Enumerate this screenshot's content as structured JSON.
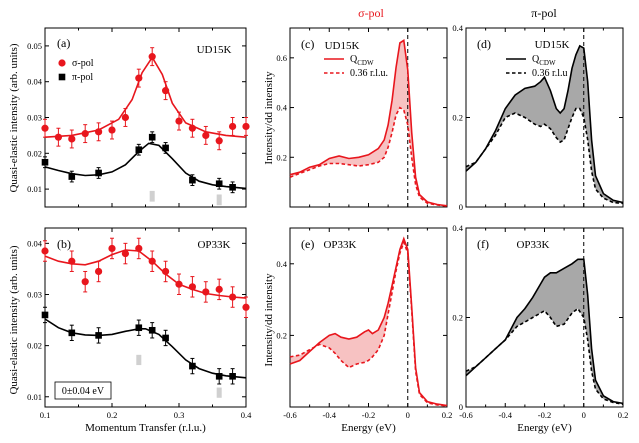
{
  "colors": {
    "red": "#e8161d",
    "black": "#000000",
    "shade_red": "#f7c2c2",
    "shade_grey": "#a8a8a8",
    "bar": "#d0d0d0"
  },
  "chart_data": [
    {
      "id": "a",
      "type": "scatter",
      "panel_label": "(a)",
      "title": "UD15K",
      "xlim": [
        0.1,
        0.4
      ],
      "ylim": [
        0.005,
        0.055
      ],
      "xticks": [
        0.1,
        0.2,
        0.3,
        0.4
      ],
      "yticks": [
        0.01,
        0.02,
        0.03,
        0.04,
        0.05
      ],
      "xtick_labels": [
        "",
        "",
        "",
        ""
      ],
      "ytick_labels": [
        "0.01",
        "0.02",
        "0.03",
        "0.04",
        "0.05"
      ],
      "legend": [
        {
          "label": "σ-pol",
          "marker": "circle",
          "color": "#e8161d"
        },
        {
          "label": "π-pol",
          "marker": "square",
          "color": "#000000"
        }
      ],
      "series": [
        {
          "name": "σ-pol",
          "marker": "circle",
          "color": "#e8161d",
          "x": [
            0.1,
            0.12,
            0.14,
            0.16,
            0.18,
            0.2,
            0.22,
            0.24,
            0.26,
            0.28,
            0.3,
            0.32,
            0.34,
            0.36,
            0.38,
            0.4
          ],
          "y": [
            0.027,
            0.0245,
            0.024,
            0.0255,
            0.026,
            0.0265,
            0.03,
            0.041,
            0.047,
            0.0375,
            0.029,
            0.027,
            0.025,
            0.0235,
            0.0275,
            0.0275
          ],
          "err": [
            0.0025,
            0.0025,
            0.0025,
            0.0025,
            0.0025,
            0.0025,
            0.0025,
            0.0025,
            0.0025,
            0.0025,
            0.0025,
            0.0025,
            0.0025,
            0.0025,
            0.0025,
            0.0025
          ],
          "fit_x": [
            0.1,
            0.14,
            0.18,
            0.21,
            0.23,
            0.245,
            0.26,
            0.275,
            0.29,
            0.31,
            0.34,
            0.37,
            0.4
          ],
          "fit_y": [
            0.0245,
            0.025,
            0.0265,
            0.0295,
            0.035,
            0.0425,
            0.0468,
            0.042,
            0.034,
            0.0285,
            0.026,
            0.025,
            0.0245
          ]
        },
        {
          "name": "π-pol",
          "marker": "square",
          "color": "#000000",
          "x": [
            0.1,
            0.14,
            0.18,
            0.24,
            0.26,
            0.28,
            0.32,
            0.36,
            0.38
          ],
          "y": [
            0.0175,
            0.0135,
            0.0145,
            0.021,
            0.0245,
            0.0215,
            0.0125,
            0.0115,
            0.0105
          ],
          "err": [
            0.0015,
            0.0015,
            0.0015,
            0.0015,
            0.0015,
            0.0015,
            0.0015,
            0.0015,
            0.0015
          ],
          "fit_x": [
            0.1,
            0.12,
            0.14,
            0.16,
            0.18,
            0.2,
            0.22,
            0.24,
            0.255,
            0.27,
            0.29,
            0.31,
            0.33,
            0.35,
            0.37,
            0.4
          ],
          "fit_y": [
            0.0162,
            0.0152,
            0.0143,
            0.0138,
            0.014,
            0.0148,
            0.0168,
            0.0205,
            0.0228,
            0.0222,
            0.0185,
            0.0145,
            0.0122,
            0.0112,
            0.0107,
            0.0102
          ]
        }
      ],
      "bars": [
        {
          "x": 0.26,
          "y0": 0.0065,
          "y1": 0.0095
        },
        {
          "x": 0.36,
          "y0": 0.0055,
          "y1": 0.0085
        }
      ]
    },
    {
      "id": "b",
      "type": "scatter",
      "panel_label": "(b)",
      "title": "OP33K",
      "xlim": [
        0.1,
        0.4
      ],
      "ylim": [
        0.008,
        0.043
      ],
      "xticks": [
        0.1,
        0.2,
        0.3,
        0.4
      ],
      "yticks": [
        0.01,
        0.02,
        0.03,
        0.04
      ],
      "xtick_labels": [
        "0.1",
        "0.2",
        "0.3",
        "0.4"
      ],
      "ytick_labels": [
        "0.01",
        "0.02",
        "0.03",
        "0.04"
      ],
      "xlabel": "Momentum Transfer (r.l.u.)",
      "annotation": "0±0.04 eV",
      "series": [
        {
          "name": "σ-pol",
          "marker": "circle",
          "color": "#e8161d",
          "x": [
            0.1,
            0.14,
            0.16,
            0.18,
            0.2,
            0.22,
            0.24,
            0.26,
            0.28,
            0.3,
            0.32,
            0.34,
            0.36,
            0.38,
            0.4
          ],
          "y": [
            0.0385,
            0.0365,
            0.0325,
            0.0345,
            0.039,
            0.038,
            0.039,
            0.0365,
            0.0345,
            0.032,
            0.0315,
            0.0305,
            0.031,
            0.0295,
            0.0275
          ],
          "err": [
            0.002,
            0.002,
            0.002,
            0.002,
            0.002,
            0.002,
            0.002,
            0.002,
            0.002,
            0.002,
            0.002,
            0.002,
            0.002,
            0.002,
            0.002
          ],
          "fit_x": [
            0.1,
            0.12,
            0.14,
            0.16,
            0.18,
            0.2,
            0.22,
            0.24,
            0.26,
            0.28,
            0.3,
            0.32,
            0.34,
            0.36,
            0.38,
            0.4
          ],
          "fit_y": [
            0.0375,
            0.0365,
            0.036,
            0.0358,
            0.0365,
            0.0378,
            0.0387,
            0.0385,
            0.0365,
            0.034,
            0.032,
            0.031,
            0.0302,
            0.0298,
            0.0295,
            0.0293
          ]
        },
        {
          "name": "π-pol",
          "marker": "square",
          "color": "#000000",
          "x": [
            0.1,
            0.14,
            0.18,
            0.24,
            0.26,
            0.28,
            0.32,
            0.36,
            0.38
          ],
          "y": [
            0.026,
            0.0225,
            0.022,
            0.0235,
            0.023,
            0.0215,
            0.016,
            0.014,
            0.014
          ],
          "err": [
            0.0015,
            0.0015,
            0.0015,
            0.0015,
            0.0015,
            0.0015,
            0.0015,
            0.0015,
            0.0015
          ],
          "fit_x": [
            0.1,
            0.12,
            0.14,
            0.16,
            0.18,
            0.2,
            0.22,
            0.24,
            0.25,
            0.27,
            0.29,
            0.31,
            0.33,
            0.35,
            0.37,
            0.4
          ],
          "fit_y": [
            0.0252,
            0.0235,
            0.0225,
            0.0221,
            0.022,
            0.0222,
            0.0228,
            0.0233,
            0.0233,
            0.0222,
            0.0198,
            0.0172,
            0.0155,
            0.0146,
            0.0141,
            0.0137
          ]
        }
      ],
      "bars": [
        {
          "x": 0.24,
          "y0": 0.0162,
          "y1": 0.0182
        },
        {
          "x": 0.36,
          "y0": 0.0098,
          "y1": 0.0118
        }
      ]
    },
    {
      "id": "c",
      "type": "line",
      "panel_label": "(c)",
      "title": "UD15K",
      "color": "#e8161d",
      "xlim": [
        -0.6,
        0.2
      ],
      "ylim": [
        0.0,
        0.72
      ],
      "xticks": [
        -0.6,
        -0.4,
        -0.2,
        0.0,
        0.2
      ],
      "yticks": [
        0.2,
        0.4,
        0.6
      ],
      "xtick_labels": [
        "",
        "",
        "",
        "",
        ""
      ],
      "ytick_labels": [
        "0.2",
        "0.4",
        "0.6"
      ],
      "legend": [
        {
          "label": "Q",
          "sub": "CDW",
          "style": "solid"
        },
        {
          "label": "0.36 r.l.u.",
          "style": "dashed"
        }
      ],
      "vline_x": 0.0,
      "series": [
        {
          "name": "QCDW",
          "style": "solid",
          "x": [
            -0.6,
            -0.55,
            -0.5,
            -0.45,
            -0.4,
            -0.35,
            -0.3,
            -0.25,
            -0.2,
            -0.15,
            -0.12,
            -0.1,
            -0.08,
            -0.06,
            -0.04,
            -0.02,
            0.0,
            0.02,
            0.04,
            0.06,
            0.1,
            0.15,
            0.2
          ],
          "y": [
            0.13,
            0.14,
            0.16,
            0.17,
            0.195,
            0.205,
            0.195,
            0.2,
            0.21,
            0.235,
            0.27,
            0.33,
            0.43,
            0.56,
            0.66,
            0.67,
            0.55,
            0.3,
            0.12,
            0.05,
            0.02,
            0.01,
            0.005
          ]
        },
        {
          "name": "0.36 r.l.u.",
          "style": "dashed",
          "x": [
            -0.6,
            -0.55,
            -0.5,
            -0.45,
            -0.4,
            -0.35,
            -0.3,
            -0.25,
            -0.2,
            -0.15,
            -0.12,
            -0.1,
            -0.08,
            -0.06,
            -0.04,
            -0.02,
            0.0,
            0.02,
            0.04,
            0.06,
            0.1,
            0.15,
            0.2
          ],
          "y": [
            0.12,
            0.135,
            0.15,
            0.165,
            0.175,
            0.175,
            0.17,
            0.165,
            0.17,
            0.18,
            0.2,
            0.24,
            0.3,
            0.37,
            0.4,
            0.39,
            0.33,
            0.2,
            0.09,
            0.04,
            0.015,
            0.008,
            0.004
          ]
        }
      ]
    },
    {
      "id": "d",
      "type": "line",
      "panel_label": "(d)",
      "title": "UD15K",
      "color": "#000000",
      "xlim": [
        -0.6,
        0.2
      ],
      "ylim": [
        0.0,
        0.4
      ],
      "xticks": [
        -0.6,
        -0.4,
        -0.2,
        0.0,
        0.2
      ],
      "yticks": [
        0,
        0.2,
        0.4
      ],
      "xtick_labels": [
        "",
        "",
        "",
        "",
        ""
      ],
      "ytick_labels": [
        "0",
        "0.2",
        "0.4"
      ],
      "legend": [
        {
          "label": "Q",
          "sub": "CDW",
          "style": "solid"
        },
        {
          "label": "0.36 r.l.u",
          "style": "dashed"
        }
      ],
      "vline_x": 0.0,
      "series": [
        {
          "name": "QCDW",
          "style": "solid",
          "x": [
            -0.6,
            -0.55,
            -0.5,
            -0.45,
            -0.4,
            -0.35,
            -0.3,
            -0.25,
            -0.22,
            -0.2,
            -0.17,
            -0.14,
            -0.12,
            -0.1,
            -0.08,
            -0.06,
            -0.04,
            -0.02,
            0.0,
            0.02,
            0.04,
            0.06,
            0.1,
            0.15,
            0.2
          ],
          "y": [
            0.08,
            0.1,
            0.13,
            0.17,
            0.22,
            0.25,
            0.265,
            0.27,
            0.28,
            0.29,
            0.26,
            0.22,
            0.21,
            0.22,
            0.26,
            0.31,
            0.34,
            0.36,
            0.355,
            0.28,
            0.15,
            0.07,
            0.03,
            0.015,
            0.01
          ]
        },
        {
          "name": "0.36 r.l.u",
          "style": "dashed",
          "x": [
            -0.6,
            -0.55,
            -0.5,
            -0.45,
            -0.4,
            -0.35,
            -0.3,
            -0.25,
            -0.22,
            -0.2,
            -0.17,
            -0.14,
            -0.12,
            -0.1,
            -0.08,
            -0.06,
            -0.04,
            -0.02,
            0.0,
            0.02,
            0.04,
            0.06,
            0.1,
            0.15,
            0.2
          ],
          "y": [
            0.09,
            0.1,
            0.13,
            0.16,
            0.2,
            0.21,
            0.2,
            0.185,
            0.18,
            0.185,
            0.175,
            0.155,
            0.145,
            0.15,
            0.175,
            0.2,
            0.22,
            0.22,
            0.2,
            0.15,
            0.08,
            0.04,
            0.02,
            0.01,
            0.008
          ]
        }
      ]
    },
    {
      "id": "e",
      "type": "line",
      "panel_label": "(e)",
      "title": "OP33K",
      "color": "#e8161d",
      "xlim": [
        -0.6,
        0.2
      ],
      "ylim": [
        0.0,
        0.5
      ],
      "xticks": [
        -0.6,
        -0.4,
        -0.2,
        0.0,
        0.2
      ],
      "yticks": [
        0.2,
        0.4
      ],
      "xtick_labels": [
        "-0.6",
        "-0.4",
        "-0.2",
        "0",
        "0.2"
      ],
      "ytick_labels": [
        "0.2",
        "0.4"
      ],
      "xlabel": "Energy (eV)",
      "vline_x": 0.0,
      "series": [
        {
          "name": "QCDW",
          "style": "solid",
          "x": [
            -0.6,
            -0.55,
            -0.5,
            -0.45,
            -0.4,
            -0.37,
            -0.34,
            -0.3,
            -0.26,
            -0.22,
            -0.2,
            -0.18,
            -0.15,
            -0.12,
            -0.1,
            -0.08,
            -0.06,
            -0.04,
            -0.02,
            0.0,
            0.02,
            0.04,
            0.06,
            0.1,
            0.15,
            0.2
          ],
          "y": [
            0.12,
            0.13,
            0.155,
            0.18,
            0.2,
            0.205,
            0.195,
            0.19,
            0.195,
            0.21,
            0.215,
            0.205,
            0.215,
            0.25,
            0.29,
            0.34,
            0.39,
            0.44,
            0.47,
            0.44,
            0.28,
            0.11,
            0.04,
            0.015,
            0.008,
            0.004
          ]
        },
        {
          "name": "0.36 r.l.u.",
          "style": "dashed",
          "x": [
            -0.6,
            -0.55,
            -0.5,
            -0.45,
            -0.4,
            -0.37,
            -0.34,
            -0.3,
            -0.26,
            -0.22,
            -0.2,
            -0.18,
            -0.15,
            -0.12,
            -0.1,
            -0.08,
            -0.06,
            -0.04,
            -0.02,
            0.0,
            0.02,
            0.04,
            0.06,
            0.1,
            0.15,
            0.2
          ],
          "y": [
            0.14,
            0.145,
            0.16,
            0.175,
            0.165,
            0.15,
            0.13,
            0.11,
            0.12,
            0.125,
            0.13,
            0.14,
            0.16,
            0.2,
            0.26,
            0.32,
            0.38,
            0.43,
            0.46,
            0.43,
            0.27,
            0.1,
            0.035,
            0.012,
            0.006,
            0.003
          ]
        }
      ]
    },
    {
      "id": "f",
      "type": "line",
      "panel_label": "(f)",
      "title": "OP33K",
      "color": "#000000",
      "xlim": [
        -0.6,
        0.2
      ],
      "ylim": [
        0.0,
        0.4
      ],
      "xticks": [
        -0.6,
        -0.4,
        -0.2,
        0.0,
        0.2
      ],
      "yticks": [
        0,
        0.2,
        0.4
      ],
      "xtick_labels": [
        "-0.6",
        "-0.4",
        "-0.2",
        "0",
        "0.2"
      ],
      "ytick_labels": [
        "0",
        "0.2",
        "0.4"
      ],
      "xlabel": "Energy (eV)",
      "vline_x": 0.0,
      "series": [
        {
          "name": "QCDW",
          "style": "solid",
          "x": [
            -0.6,
            -0.55,
            -0.5,
            -0.45,
            -0.4,
            -0.37,
            -0.34,
            -0.3,
            -0.26,
            -0.22,
            -0.2,
            -0.17,
            -0.14,
            -0.1,
            -0.06,
            -0.03,
            0.0,
            0.02,
            0.04,
            0.06,
            0.1,
            0.15,
            0.2
          ],
          "y": [
            0.07,
            0.09,
            0.11,
            0.13,
            0.15,
            0.175,
            0.2,
            0.22,
            0.245,
            0.275,
            0.29,
            0.3,
            0.3,
            0.31,
            0.32,
            0.33,
            0.33,
            0.25,
            0.13,
            0.06,
            0.025,
            0.012,
            0.008
          ]
        },
        {
          "name": "0.36 r.l.u.",
          "style": "dashed",
          "x": [
            -0.6,
            -0.55,
            -0.5,
            -0.45,
            -0.4,
            -0.37,
            -0.34,
            -0.3,
            -0.26,
            -0.22,
            -0.2,
            -0.17,
            -0.14,
            -0.1,
            -0.06,
            -0.03,
            0.0,
            0.02,
            0.04,
            0.06,
            0.1,
            0.15,
            0.2
          ],
          "y": [
            0.08,
            0.09,
            0.11,
            0.13,
            0.15,
            0.165,
            0.18,
            0.19,
            0.2,
            0.21,
            0.215,
            0.2,
            0.18,
            0.185,
            0.21,
            0.22,
            0.2,
            0.15,
            0.08,
            0.04,
            0.018,
            0.01,
            0.006
          ]
        }
      ]
    }
  ],
  "labels": {
    "ylabel_left": "Quasi-elastic intensity (arb. units)",
    "ylabel_mid": "Intensity/dd intensity",
    "header_sigma": "σ-pol",
    "header_pi": "π-pol"
  }
}
